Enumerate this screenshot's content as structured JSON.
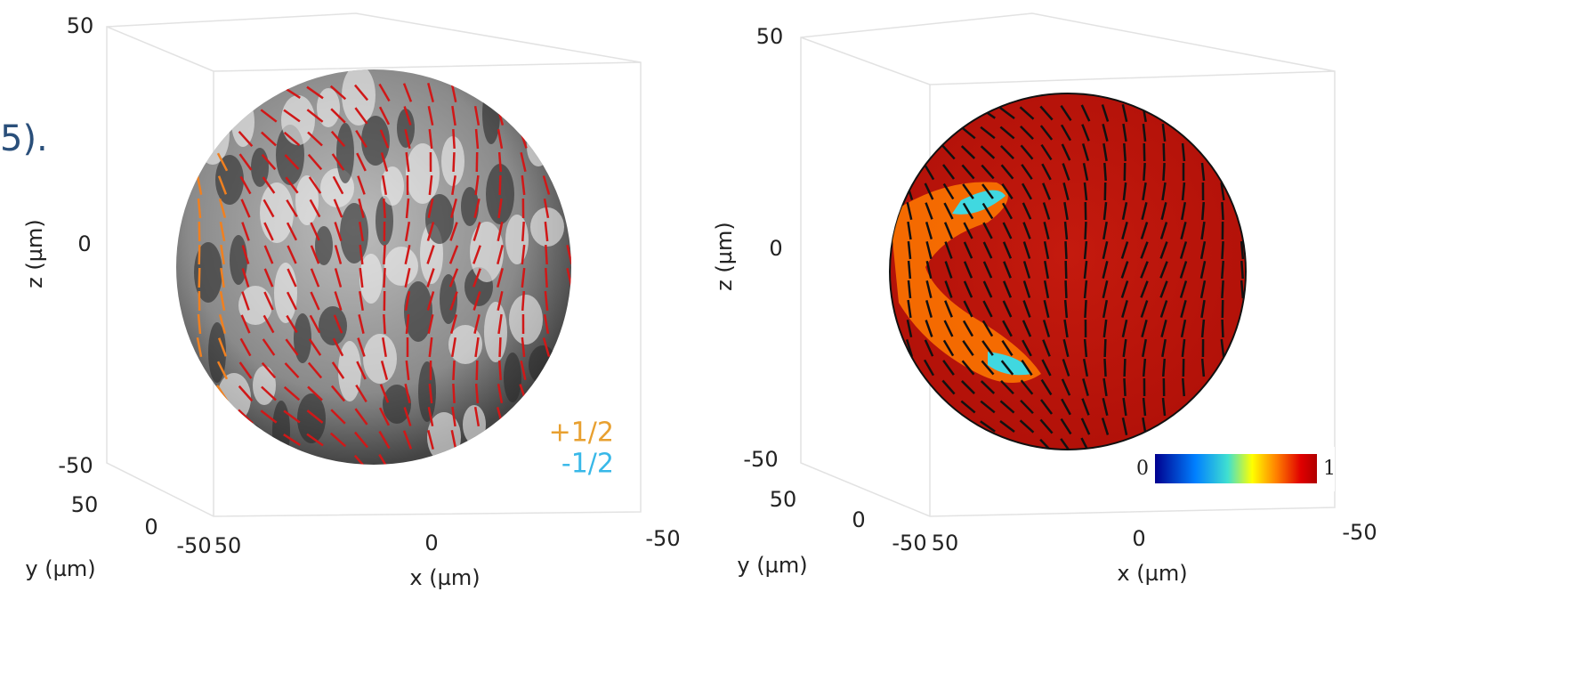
{
  "fragment": "5).",
  "left_panel": {
    "z_label": "z (µm)",
    "y_label": "y (µm)",
    "x_label": "x (µm)",
    "z_ticks": [
      "50",
      "0",
      "-50"
    ],
    "y_ticks": [
      "50",
      "0",
      "-50"
    ],
    "x_ticks": [
      "50",
      "0",
      "-50"
    ],
    "legend": [
      "+1/2",
      "-1/2"
    ]
  },
  "right_panel": {
    "z_label": "z (µm)",
    "y_label": "y (µm)",
    "x_label": "x (µm)",
    "z_ticks": [
      "50",
      "0",
      "-50"
    ],
    "y_ticks": [
      "50",
      "0",
      "-50"
    ],
    "x_ticks": [
      "50",
      "0",
      "-50"
    ],
    "colorbar": [
      "0",
      "1"
    ]
  }
}
